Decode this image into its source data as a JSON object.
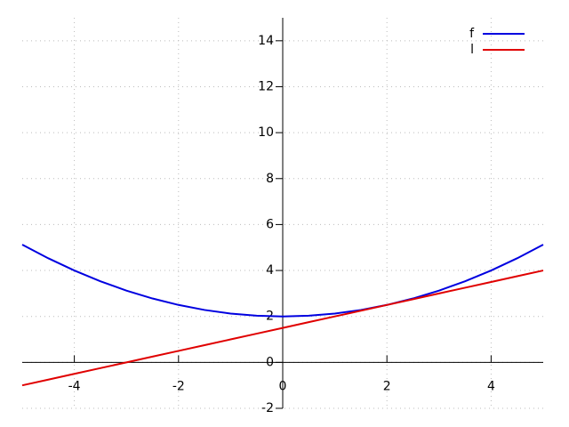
{
  "chart_data": {
    "type": "line",
    "x": [
      -5,
      -4.5,
      -4,
      -3.5,
      -3,
      -2.5,
      -2,
      -1.5,
      -1,
      -0.5,
      0,
      0.5,
      1,
      1.5,
      2,
      2.5,
      3,
      3.5,
      4,
      4.5,
      5
    ],
    "series": [
      {
        "name": "f",
        "color": "#0000e0",
        "values": [
          5.125,
          4.53125,
          4,
          3.53125,
          3.125,
          2.78125,
          2.5,
          2.28125,
          2.125,
          2.03125,
          2,
          2.03125,
          2.125,
          2.28125,
          2.5,
          2.78125,
          3.125,
          3.53125,
          4,
          4.53125,
          5.125
        ]
      },
      {
        "name": "l",
        "color": "#e00000",
        "values": [
          -1,
          -0.75,
          -0.5,
          -0.25,
          0,
          0.25,
          0.5,
          0.75,
          1,
          1.25,
          1.5,
          1.75,
          2,
          2.25,
          2.5,
          2.75,
          3,
          3.25,
          3.5,
          3.75,
          4
        ]
      }
    ],
    "xlim": [
      -5,
      5
    ],
    "ylim": [
      -2,
      15
    ],
    "xticks": [
      -4,
      -2,
      0,
      2,
      4
    ],
    "yticks": [
      -2,
      0,
      2,
      4,
      6,
      8,
      10,
      12,
      14
    ],
    "grid": true,
    "legend": "top-right"
  }
}
